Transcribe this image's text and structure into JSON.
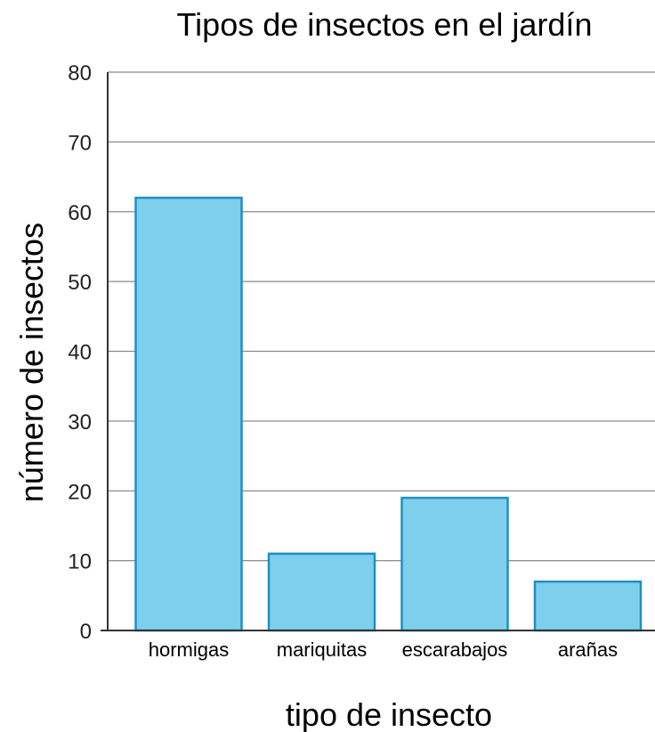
{
  "chart_data": {
    "type": "bar",
    "title": "Tipos de insectos en el jardín",
    "xlabel": "tipo de insecto",
    "ylabel": "número de insectos",
    "categories": [
      "hormigas",
      "mariquitas",
      "escarabajos",
      "arañas"
    ],
    "values": [
      62,
      11,
      19,
      7
    ],
    "ylim": [
      0,
      80
    ],
    "yticks": [
      0,
      10,
      20,
      30,
      40,
      50,
      60,
      70,
      80
    ],
    "grid": true,
    "colors": {
      "bar_fill": "#7dcfeb",
      "bar_stroke": "#1e8fc6",
      "grid": "#8a8a8a",
      "axis": "#333333"
    }
  }
}
